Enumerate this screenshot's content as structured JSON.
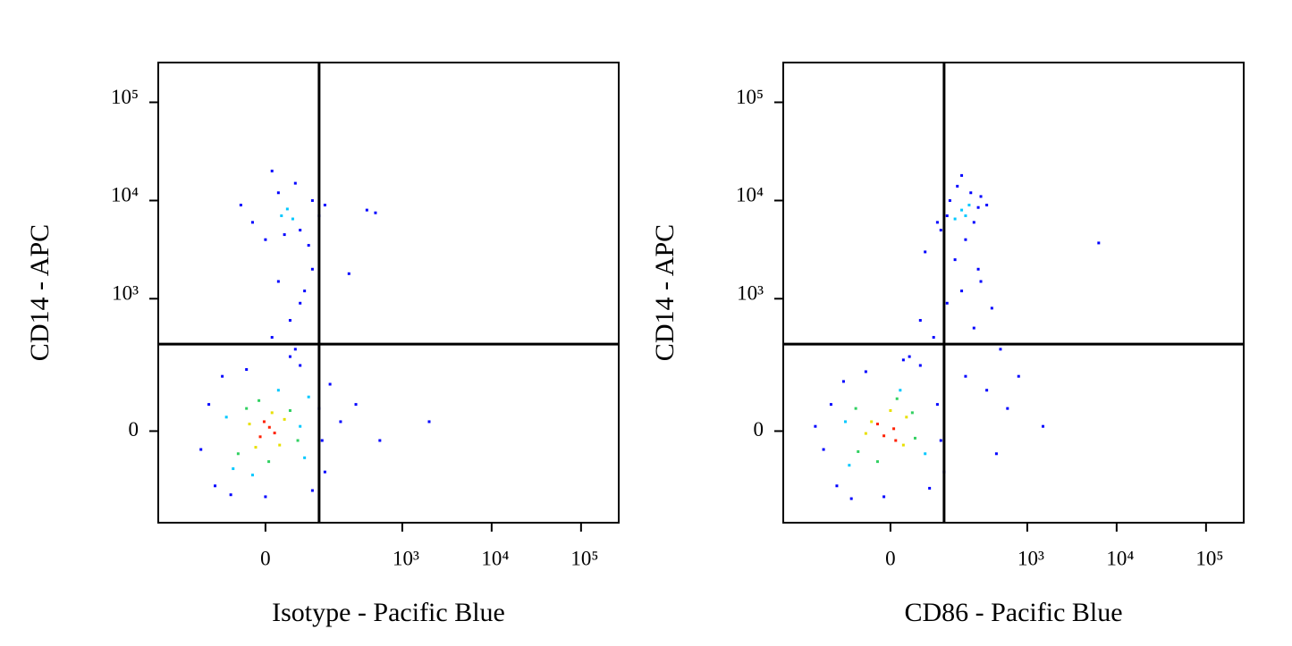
{
  "chart_data": [
    {
      "type": "scatter",
      "xlabel": "Isotype - Pacific Blue",
      "ylabel": "CD14 - APC",
      "xscale": "logicle",
      "yscale": "logicle",
      "xlim": [
        -465,
        264000
      ],
      "ylim": [
        -380,
        254000
      ],
      "xticks": [
        0,
        {
          "value": 1000,
          "label": "10³"
        },
        {
          "value": 10000,
          "label": "10⁴"
        },
        {
          "value": 100000,
          "label": "10⁵"
        }
      ],
      "yticks": [
        0,
        {
          "value": 1000,
          "label": "10³"
        },
        {
          "value": 10000,
          "label": "10⁴"
        },
        {
          "value": 100000,
          "label": "10⁵"
        }
      ],
      "quadrant": {
        "x": 110,
        "y": 340
      },
      "series": [
        {
          "color": "#0000ff",
          "x": [
            -150,
            -120,
            -100,
            110,
            130,
            150,
            -80,
            90,
            0,
            -30,
            60,
            200,
            40,
            -60,
            120,
            300,
            2000,
            560,
            -40,
            0,
            20,
            60,
            90,
            110,
            -20,
            50,
            130,
            80,
            10,
            400,
            500,
            30,
            20,
            60,
            40,
            90,
            10,
            70,
            50,
            250
          ],
          "values": [
            -40,
            60,
            -150,
            50,
            -100,
            120,
            150,
            -170,
            -200,
            180,
            200,
            20,
            250,
            -190,
            -20,
            60,
            20,
            -20,
            9000,
            4000,
            12000,
            5000,
            10000,
            7000,
            6000,
            15000,
            9000,
            3500,
            20000,
            8000,
            7500,
            4500,
            1500,
            900,
            600,
            2000,
            400,
            1200,
            300,
            1800
          ]
        },
        {
          "color": "#00c8ff",
          "x": [
            -70,
            70,
            80,
            -55,
            20,
            60,
            -20,
            25,
            45,
            35
          ],
          "values": [
            30,
            -60,
            80,
            -90,
            100,
            10,
            -110,
            7000,
            6500,
            8200
          ]
        },
        {
          "color": "#30d060",
          "x": [
            -45,
            40,
            -30,
            55,
            5,
            -10
          ],
          "values": [
            -50,
            45,
            50,
            -20,
            -70,
            70
          ]
        },
        {
          "color": "#e8e000",
          "x": [
            -25,
            22,
            30,
            -15,
            10
          ],
          "values": [
            15,
            -30,
            25,
            -35,
            40
          ]
        },
        {
          "color": "#ff2000",
          "x": [
            -8,
            6,
            14,
            -2
          ],
          "values": [
            -12,
            8,
            -4,
            20
          ]
        }
      ]
    },
    {
      "type": "scatter",
      "xlabel": "CD86 - Pacific Blue",
      "ylabel": "CD14 - APC",
      "xscale": "logicle",
      "yscale": "logicle",
      "xlim": [
        -465,
        264000
      ],
      "ylim": [
        -380,
        254000
      ],
      "xticks": [
        0,
        {
          "value": 1000,
          "label": "10³"
        },
        {
          "value": 10000,
          "label": "10⁴"
        },
        {
          "value": 100000,
          "label": "10⁵"
        }
      ],
      "yticks": [
        0,
        {
          "value": 1000,
          "label": "10³"
        },
        {
          "value": 10000,
          "label": "10⁴"
        },
        {
          "value": 100000,
          "label": "10⁵"
        }
      ],
      "quadrant": {
        "x": 110,
        "y": 340
      },
      "series": [
        {
          "color": "#0000ff",
          "x": [
            -160,
            -130,
            -110,
            90,
            110,
            -90,
            70,
            -10,
            -40,
            50,
            -200,
            20,
            -70,
            100,
            100,
            130,
            250,
            300,
            160,
            200,
            120,
            280,
            180,
            350,
            90,
            230,
            150,
            300,
            400,
            250,
            500,
            200,
            350,
            450,
            180,
            600,
            280,
            120,
            80,
            50,
            30,
            60,
            800,
            1500,
            6300
          ],
          "values": [
            -40,
            60,
            -150,
            60,
            -100,
            130,
            -160,
            -200,
            170,
            200,
            10,
            230,
            -210,
            -20,
            5000,
            10000,
            6000,
            11000,
            14000,
            4000,
            7000,
            8500,
            18000,
            9000,
            6000,
            12000,
            2500,
            1500,
            800,
            500,
            300,
            150,
            100,
            -50,
            1200,
            50,
            2000,
            900,
            400,
            600,
            250,
            3000,
            150,
            10,
            3700
          ]
        },
        {
          "color": "#00c8ff",
          "x": [
            -85,
            60,
            -75,
            15,
            180,
            150,
            220,
            200
          ],
          "values": [
            20,
            -50,
            -80,
            100,
            8000,
            6500,
            9000,
            7000
          ]
        },
        {
          "color": "#30d060",
          "x": [
            -55,
            35,
            -60,
            40,
            -20,
            10
          ],
          "values": [
            -45,
            40,
            50,
            -15,
            -70,
            75
          ]
        },
        {
          "color": "#e8e000",
          "x": [
            -30,
            20,
            -40,
            25,
            0
          ],
          "values": [
            20,
            -30,
            -5,
            30,
            45
          ]
        },
        {
          "color": "#ff2000",
          "x": [
            -10,
            5,
            -20,
            8
          ],
          "values": [
            -10,
            5,
            15,
            -20
          ]
        }
      ]
    }
  ]
}
